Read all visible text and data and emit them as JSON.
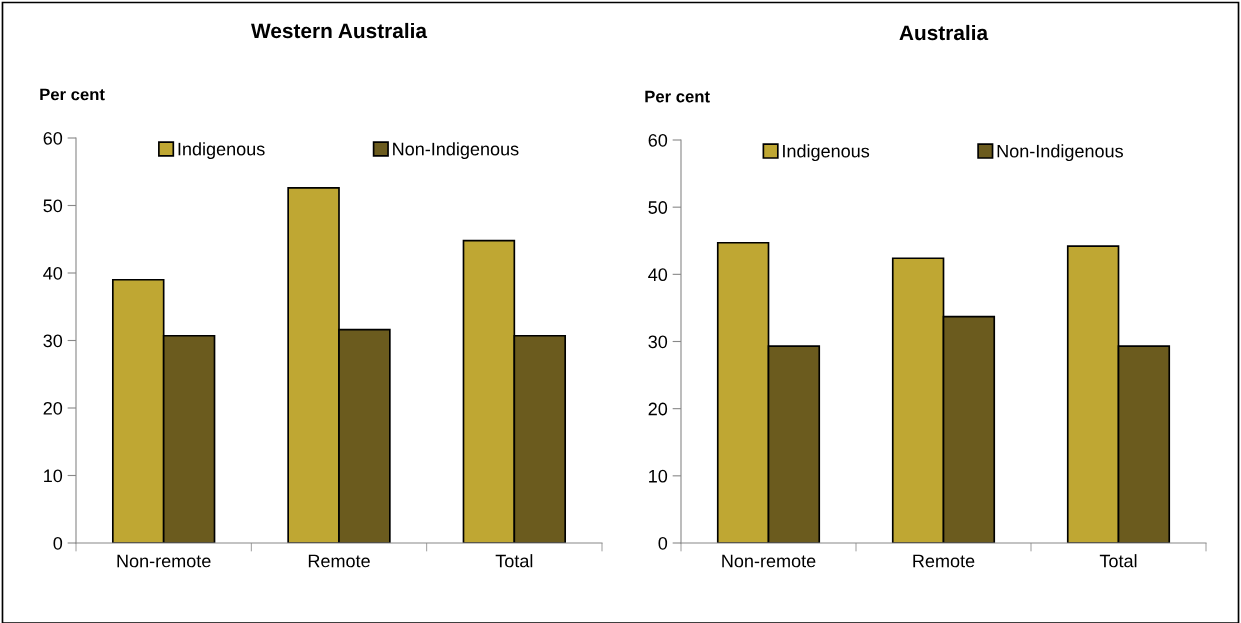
{
  "chart_data": [
    {
      "type": "bar",
      "title": "Western Australia",
      "ylabel": "Per cent",
      "categories": [
        "Non-remote",
        "Remote",
        "Total"
      ],
      "series": [
        {
          "name": "Indigenous",
          "color": "#bfa733",
          "values": [
            39.0,
            52.6,
            44.8
          ]
        },
        {
          "name": "Non-Indigenous",
          "color": "#6b5b1e",
          "values": [
            30.7,
            31.6,
            30.7
          ]
        }
      ],
      "ylim": [
        0,
        60
      ],
      "yticks": [
        0,
        10,
        20,
        30,
        40,
        50,
        60
      ],
      "grid": false,
      "legend": "top"
    },
    {
      "type": "bar",
      "title": "Australia",
      "ylabel": "Per cent",
      "categories": [
        "Non-remote",
        "Remote",
        "Total"
      ],
      "series": [
        {
          "name": "Indigenous",
          "color": "#bfa733",
          "values": [
            44.7,
            42.4,
            44.2
          ]
        },
        {
          "name": "Non-Indigenous",
          "color": "#6b5b1e",
          "values": [
            29.3,
            33.7,
            29.3
          ]
        }
      ],
      "ylim": [
        0,
        60
      ],
      "yticks": [
        0,
        10,
        20,
        30,
        40,
        50,
        60
      ],
      "grid": false,
      "legend": "top"
    }
  ]
}
